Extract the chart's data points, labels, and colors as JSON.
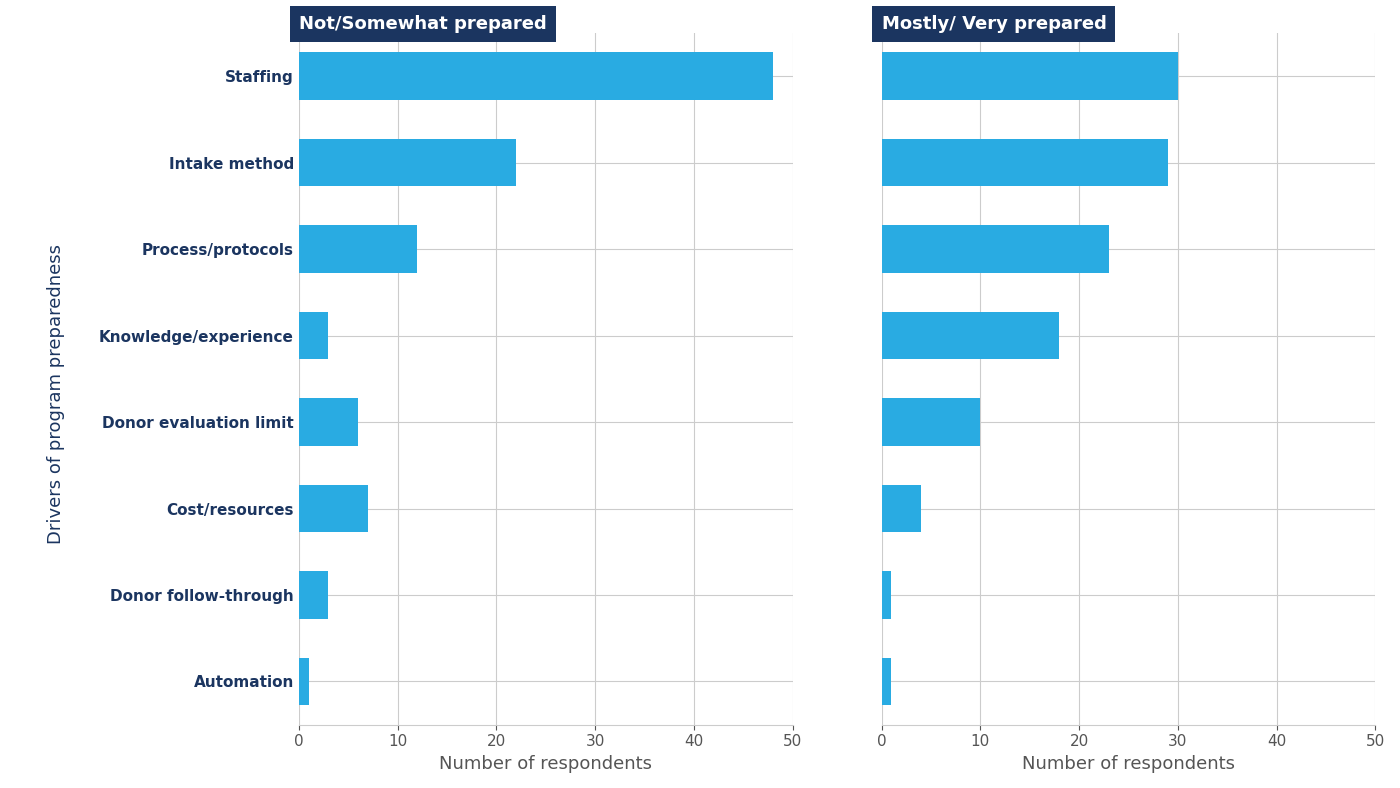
{
  "categories": [
    "Automation",
    "Donor follow-through",
    "Cost/resources",
    "Donor evaluation limit",
    "Knowledge/experience",
    "Process/protocols",
    "Intake method",
    "Staffing"
  ],
  "not_prepared": [
    1,
    3,
    7,
    6,
    3,
    12,
    22,
    48
  ],
  "mostly_prepared": [
    1,
    1,
    4,
    10,
    18,
    23,
    29,
    30
  ],
  "bar_color": "#29ABE2",
  "header_bg_color": "#1B3560",
  "header_text_color": "#FFFFFF",
  "label_color": "#1B3560",
  "axis_label_color": "#555555",
  "grid_color": "#CCCCCC",
  "background_color": "#FFFFFF",
  "title_left": "Not/Somewhat prepared",
  "title_right": "Mostly/ Very prepared",
  "xlabel": "Number of respondents",
  "ylabel": "Drivers of program preparedness",
  "xlim": [
    0,
    50
  ],
  "xticks": [
    0,
    10,
    20,
    30,
    40,
    50
  ]
}
